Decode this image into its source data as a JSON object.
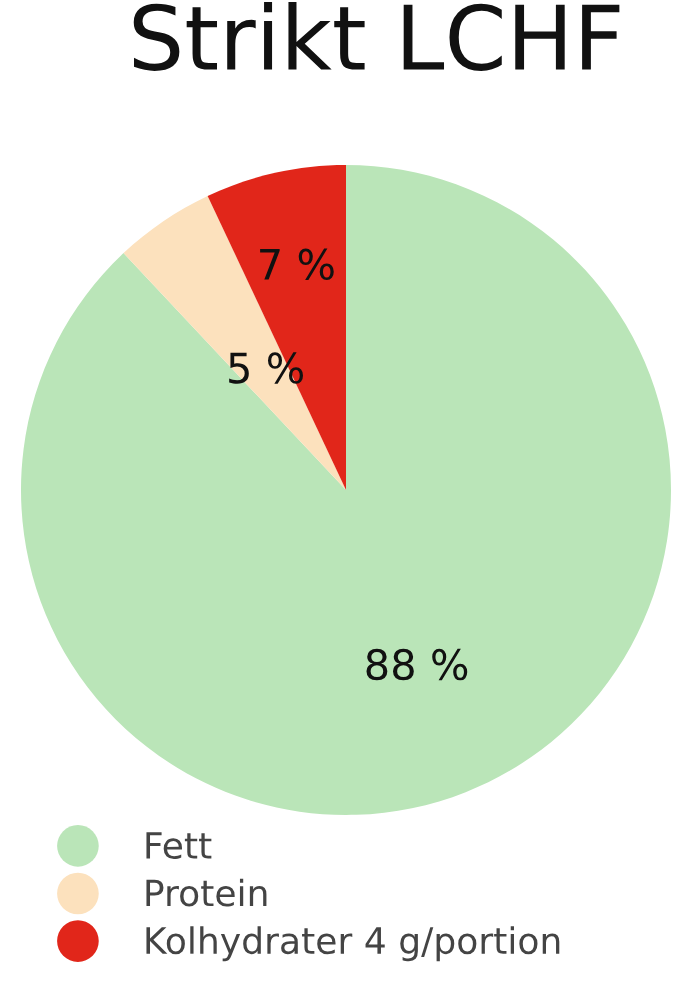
{
  "chart_data": {
    "type": "pie",
    "title": "Strikt LCHF",
    "categories": [
      "Fett",
      "Protein",
      "Kolhydrater 4 g/portion"
    ],
    "values": [
      88,
      5,
      7
    ],
    "value_labels": [
      "88 %",
      "5 %",
      "7 %"
    ],
    "colors": [
      "#bae5b8",
      "#fce1bd",
      "#e1261a"
    ],
    "legend": "bottom"
  }
}
